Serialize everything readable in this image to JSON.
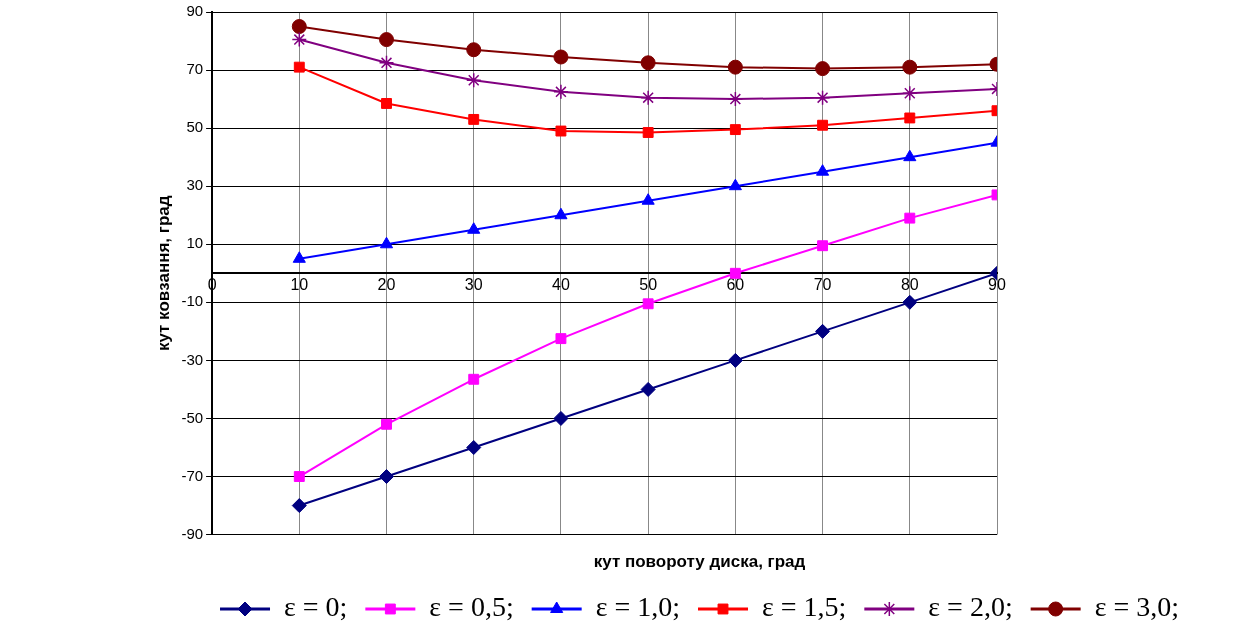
{
  "chart_data": {
    "type": "line",
    "xlabel": "кут повороту диска, град",
    "ylabel": "кут ковзання, град",
    "x": [
      10,
      20,
      30,
      40,
      50,
      60,
      70,
      80,
      90
    ],
    "series": [
      {
        "name": "ε = 0;",
        "color": "#000080",
        "marker": "diamond",
        "values": [
          -80,
          -70,
          -60,
          -50,
          -40,
          -30,
          -20,
          -10,
          0
        ]
      },
      {
        "name": "ε = 0,5;",
        "color": "#ff00ff",
        "marker": "square",
        "values": [
          -70,
          -52,
          -36.5,
          -22.5,
          -10.5,
          0,
          9.5,
          19,
          27
        ]
      },
      {
        "name": "ε = 1,0;",
        "color": "#0000ff",
        "marker": "triangle",
        "values": [
          5,
          10,
          15,
          20,
          25,
          30,
          35,
          40,
          45
        ]
      },
      {
        "name": "ε = 1,5;",
        "color": "#ff0000",
        "marker": "square",
        "values": [
          71,
          58.5,
          53,
          49,
          48.5,
          49.5,
          51,
          53.5,
          56
        ]
      },
      {
        "name": "ε = 2,0;",
        "color": "#800080",
        "marker": "cross",
        "values": [
          80.5,
          72.5,
          66.5,
          62.5,
          60.5,
          60,
          60.5,
          62,
          63.5
        ]
      },
      {
        "name": "ε = 3,0;",
        "color": "#800000",
        "marker": "circle",
        "values": [
          85,
          80.5,
          77,
          74.5,
          72.5,
          71,
          70.5,
          71,
          72
        ]
      }
    ],
    "xlim": [
      0,
      90
    ],
    "xticks": [
      0,
      10,
      20,
      30,
      40,
      50,
      60,
      70,
      80,
      90
    ],
    "ylim": [
      -90,
      90
    ],
    "yticks": [
      -90,
      -70,
      -50,
      -30,
      -10,
      10,
      30,
      50,
      70,
      90
    ],
    "grid": true,
    "legend": "bottom",
    "line_style": "solid"
  }
}
